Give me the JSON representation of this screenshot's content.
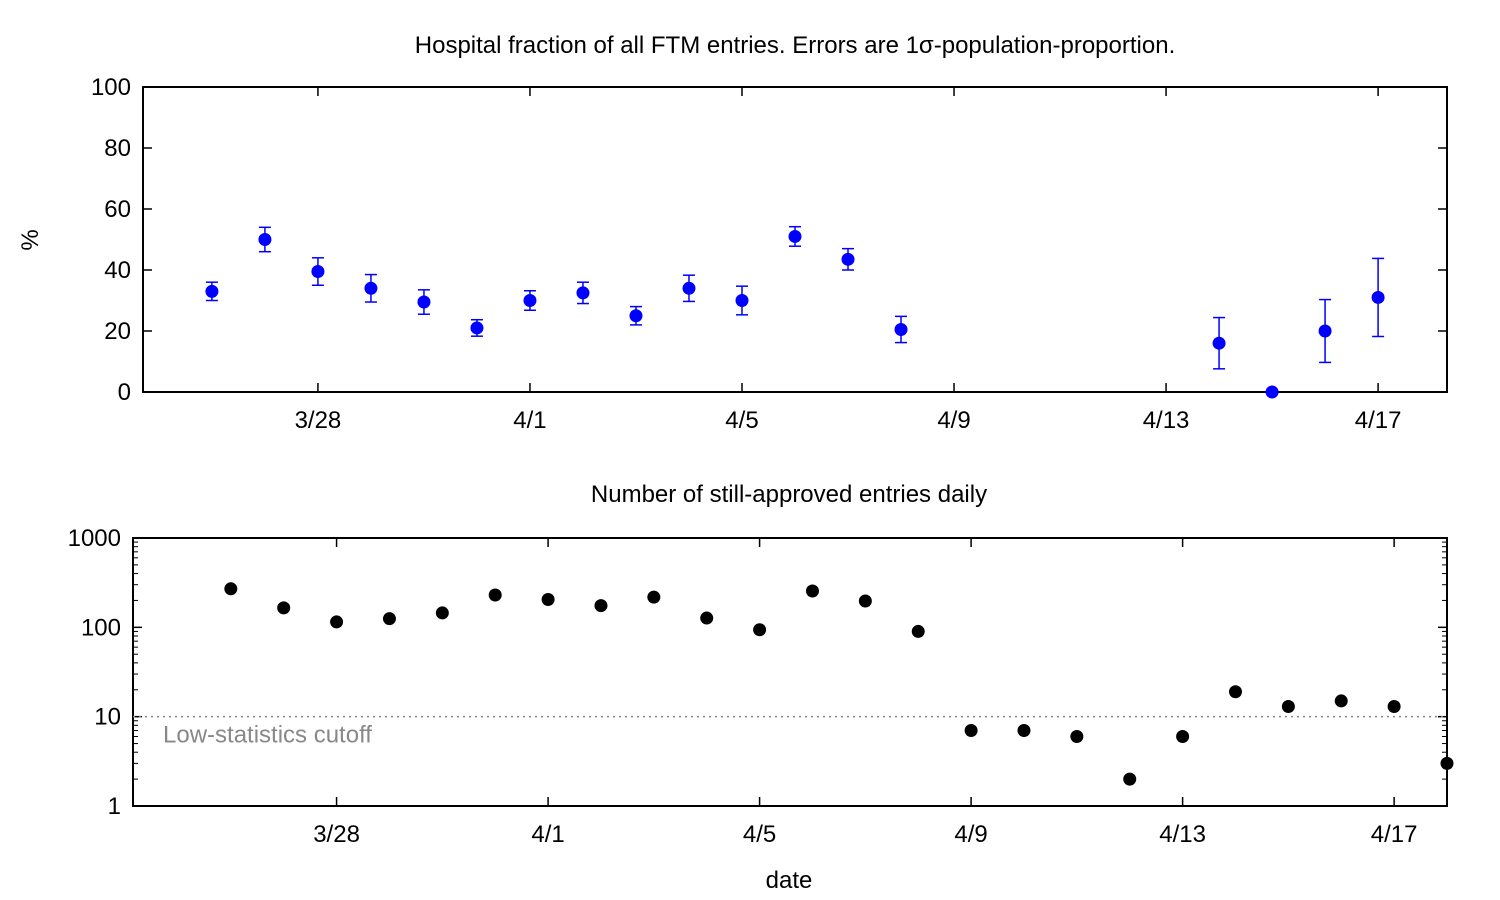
{
  "colors": {
    "hospital_points": "#0000ff",
    "count_points": "#000000",
    "cutoff_line": "#888888",
    "annotation_text": "#888888"
  },
  "chart_data": [
    {
      "type": "scatter",
      "title": "Hospital fraction of all FTM entries. Errors are 1σ-population-proportion.",
      "xlabel": "",
      "ylabel": "%",
      "x_axis": {
        "type": "date",
        "range": [
          "3/25",
          "4/18"
        ],
        "ticks": [
          "3/28",
          "4/1",
          "4/5",
          "4/9",
          "4/13",
          "4/17"
        ]
      },
      "ylim": [
        0,
        100
      ],
      "yticks": [
        "0",
        "20",
        "40",
        "60",
        "80",
        "100"
      ],
      "grid": false,
      "error_bars": true,
      "series": [
        {
          "points": [
            {
              "x": "3/26",
              "y": 33,
              "err": 3
            },
            {
              "x": "3/27",
              "y": 50,
              "err": 4
            },
            {
              "x": "3/28",
              "y": 39.5,
              "err": 4.5
            },
            {
              "x": "3/29",
              "y": 34,
              "err": 4.5
            },
            {
              "x": "3/30",
              "y": 29.5,
              "err": 4
            },
            {
              "x": "3/31",
              "y": 21,
              "err": 2.7
            },
            {
              "x": "4/1",
              "y": 30,
              "err": 3.2
            },
            {
              "x": "4/2",
              "y": 32.5,
              "err": 3.5
            },
            {
              "x": "4/3",
              "y": 25,
              "err": 3
            },
            {
              "x": "4/4",
              "y": 34,
              "err": 4.3
            },
            {
              "x": "4/5",
              "y": 30,
              "err": 4.7
            },
            {
              "x": "4/6",
              "y": 51,
              "err": 3.2
            },
            {
              "x": "4/7",
              "y": 43.5,
              "err": 3.5
            },
            {
              "x": "4/8",
              "y": 20.5,
              "err": 4.3
            },
            {
              "x": "4/14",
              "y": 16,
              "err": 8.4
            },
            {
              "x": "4/15",
              "y": 0,
              "err": 0
            },
            {
              "x": "4/16",
              "y": 20,
              "err": 10.3
            },
            {
              "x": "4/17",
              "y": 31,
              "err": 12.8
            }
          ]
        }
      ]
    },
    {
      "type": "scatter",
      "title": "Number of still-approved entries daily",
      "xlabel": "date",
      "ylabel": "",
      "x_axis": {
        "type": "date",
        "range": [
          "3/25",
          "4/18"
        ],
        "ticks": [
          "3/28",
          "4/1",
          "4/5",
          "4/9",
          "4/13",
          "4/17"
        ]
      },
      "y_scale": "log",
      "ylim": [
        1,
        1000
      ],
      "yticks": [
        "1",
        "10",
        "100",
        "1000"
      ],
      "grid": false,
      "annotations": [
        {
          "type": "hline",
          "y": 10,
          "style": "dotted",
          "label": "Low-statistics cutoff"
        }
      ],
      "series": [
        {
          "points": [
            {
              "x": "3/26",
              "y": 270
            },
            {
              "x": "3/27",
              "y": 165
            },
            {
              "x": "3/28",
              "y": 115
            },
            {
              "x": "3/29",
              "y": 125
            },
            {
              "x": "3/30",
              "y": 145
            },
            {
              "x": "3/31",
              "y": 230
            },
            {
              "x": "4/1",
              "y": 205
            },
            {
              "x": "4/2",
              "y": 175
            },
            {
              "x": "4/3",
              "y": 218
            },
            {
              "x": "4/4",
              "y": 127
            },
            {
              "x": "4/5",
              "y": 94
            },
            {
              "x": "4/6",
              "y": 255
            },
            {
              "x": "4/7",
              "y": 197
            },
            {
              "x": "4/8",
              "y": 90
            },
            {
              "x": "4/9",
              "y": 7
            },
            {
              "x": "4/10",
              "y": 7
            },
            {
              "x": "4/11",
              "y": 6
            },
            {
              "x": "4/12",
              "y": 2
            },
            {
              "x": "4/13",
              "y": 6
            },
            {
              "x": "4/14",
              "y": 19
            },
            {
              "x": "4/15",
              "y": 13
            },
            {
              "x": "4/16",
              "y": 15
            },
            {
              "x": "4/17",
              "y": 13
            },
            {
              "x": "4/18",
              "y": 3
            }
          ]
        }
      ]
    }
  ]
}
